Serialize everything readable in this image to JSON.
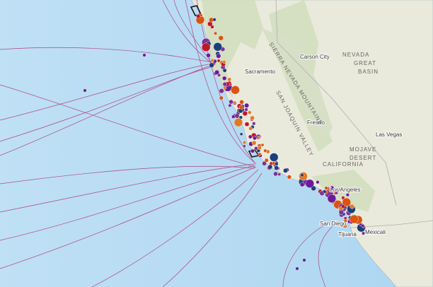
{
  "places": [
    "Sacramento",
    "Carson City",
    "Fresno",
    "Las Vegas",
    "Los Angeles",
    "San Diego",
    "Tijuana",
    "Mexicali"
  ],
  "regions": [
    "NEVADA",
    "GREAT",
    "BASIN",
    "CALIFORNIA",
    "MOJAVE",
    "DESERT",
    "SIERRA NEVADA MOUNTAINS",
    "SAN JOAQUIN VALLEY"
  ]
}
